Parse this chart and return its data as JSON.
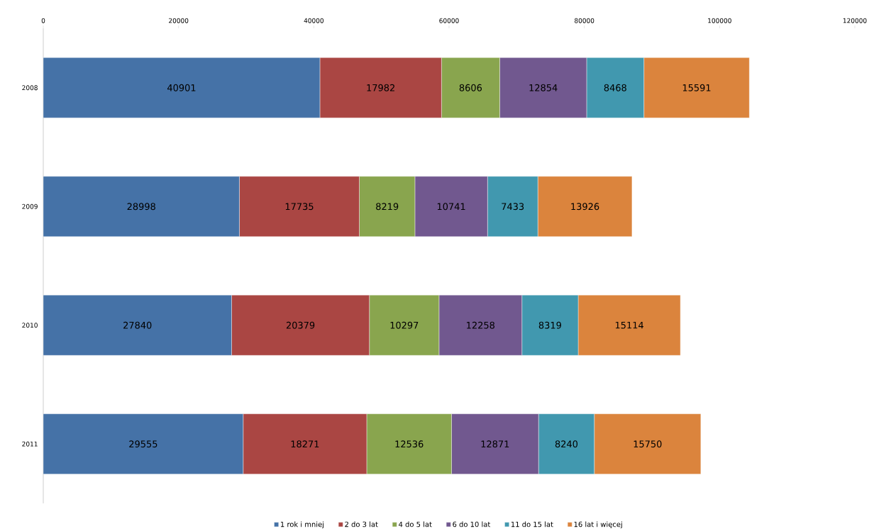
{
  "chart_data": {
    "type": "bar",
    "orientation": "horizontal",
    "stacked": true,
    "data_labels": true,
    "legend": "bottom",
    "categories": [
      "2008",
      "2009",
      "2010",
      "2011"
    ],
    "xlim": [
      0,
      120000
    ],
    "xticks": [
      0,
      20000,
      40000,
      60000,
      80000,
      100000,
      120000
    ],
    "series": [
      {
        "name": "1 rok i mniej",
        "color": "#4572a7",
        "values": [
          40901,
          28998,
          27840,
          29555
        ]
      },
      {
        "name": "2  do 3 lat",
        "color": "#aa4643",
        "values": [
          17982,
          17735,
          20379,
          18271
        ]
      },
      {
        "name": "4 do 5 lat",
        "color": "#89a54e",
        "values": [
          8606,
          8219,
          10297,
          12536
        ]
      },
      {
        "name": "6 do 10 lat",
        "color": "#71588f",
        "values": [
          12854,
          10741,
          12258,
          12871
        ]
      },
      {
        "name": "11 do 15 lat",
        "color": "#4198af",
        "values": [
          8468,
          7433,
          8319,
          8240
        ]
      },
      {
        "name": "16 lat i więcej",
        "color": "#db843d",
        "values": [
          15591,
          13926,
          15114,
          15750
        ]
      }
    ]
  }
}
